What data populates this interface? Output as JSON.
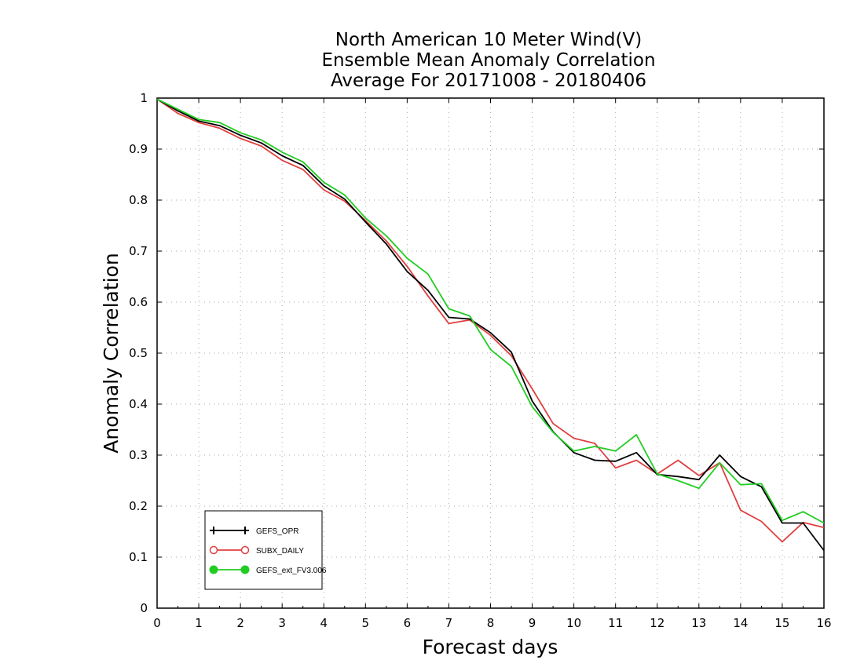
{
  "chart_data": {
    "type": "line",
    "title_lines": [
      "North American 10 Meter Wind(V)",
      "Ensemble Mean Anomaly Correlation",
      "Average For 20171008 - 20180406"
    ],
    "xlabel": "Forecast days",
    "ylabel": "Anomaly Correlation",
    "xlim": [
      0,
      16
    ],
    "ylim": [
      0,
      1
    ],
    "x_ticks": [
      "0",
      "1",
      "2",
      "3",
      "4",
      "5",
      "6",
      "7",
      "8",
      "9",
      "10",
      "11",
      "12",
      "13",
      "14",
      "15",
      "16"
    ],
    "y_ticks": [
      "0",
      "0.1",
      "0.2",
      "0.3",
      "0.4",
      "0.5",
      "0.6",
      "0.7",
      "0.8",
      "0.9",
      "1"
    ],
    "grid": true,
    "legend_position": "bottom-left",
    "x": [
      0,
      0.5,
      1,
      1.5,
      2,
      2.5,
      3,
      3.5,
      4,
      4.5,
      5,
      5.5,
      6,
      6.5,
      7,
      7.5,
      8,
      8.5,
      9,
      9.5,
      10,
      10.5,
      11,
      11.5,
      12,
      12.5,
      13,
      13.5,
      14,
      14.5,
      15,
      15.5,
      16
    ],
    "series": [
      {
        "name": "GEFS_OPR",
        "color": "#000000",
        "marker": "plus",
        "values": [
          0.998,
          0.975,
          0.955,
          0.946,
          0.927,
          0.912,
          0.887,
          0.868,
          0.828,
          0.802,
          0.757,
          0.714,
          0.66,
          0.623,
          0.57,
          0.567,
          0.54,
          0.502,
          0.406,
          0.346,
          0.305,
          0.29,
          0.288,
          0.305,
          0.262,
          0.258,
          0.252,
          0.3,
          0.258,
          0.238,
          0.167,
          0.167,
          0.113
        ]
      },
      {
        "name": "SUBX_DAILY",
        "color": "#e04040",
        "marker": "open-circle",
        "values": [
          0.998,
          0.97,
          0.952,
          0.941,
          0.921,
          0.906,
          0.878,
          0.86,
          0.82,
          0.798,
          0.76,
          0.72,
          0.67,
          0.612,
          0.558,
          0.565,
          0.535,
          0.495,
          0.43,
          0.362,
          0.333,
          0.323,
          0.275,
          0.29,
          0.263,
          0.29,
          0.26,
          0.285,
          0.192,
          0.17,
          0.13,
          0.168,
          0.158
        ]
      },
      {
        "name": "GEFS_ext_FV3.006",
        "color": "#22cc22",
        "marker": "filled-circle",
        "values": [
          0.998,
          0.978,
          0.958,
          0.952,
          0.932,
          0.918,
          0.894,
          0.875,
          0.835,
          0.81,
          0.765,
          0.73,
          0.686,
          0.655,
          0.587,
          0.573,
          0.507,
          0.474,
          0.395,
          0.345,
          0.308,
          0.317,
          0.308,
          0.34,
          0.263,
          0.25,
          0.235,
          0.285,
          0.242,
          0.244,
          0.172,
          0.189,
          0.167
        ]
      }
    ]
  }
}
